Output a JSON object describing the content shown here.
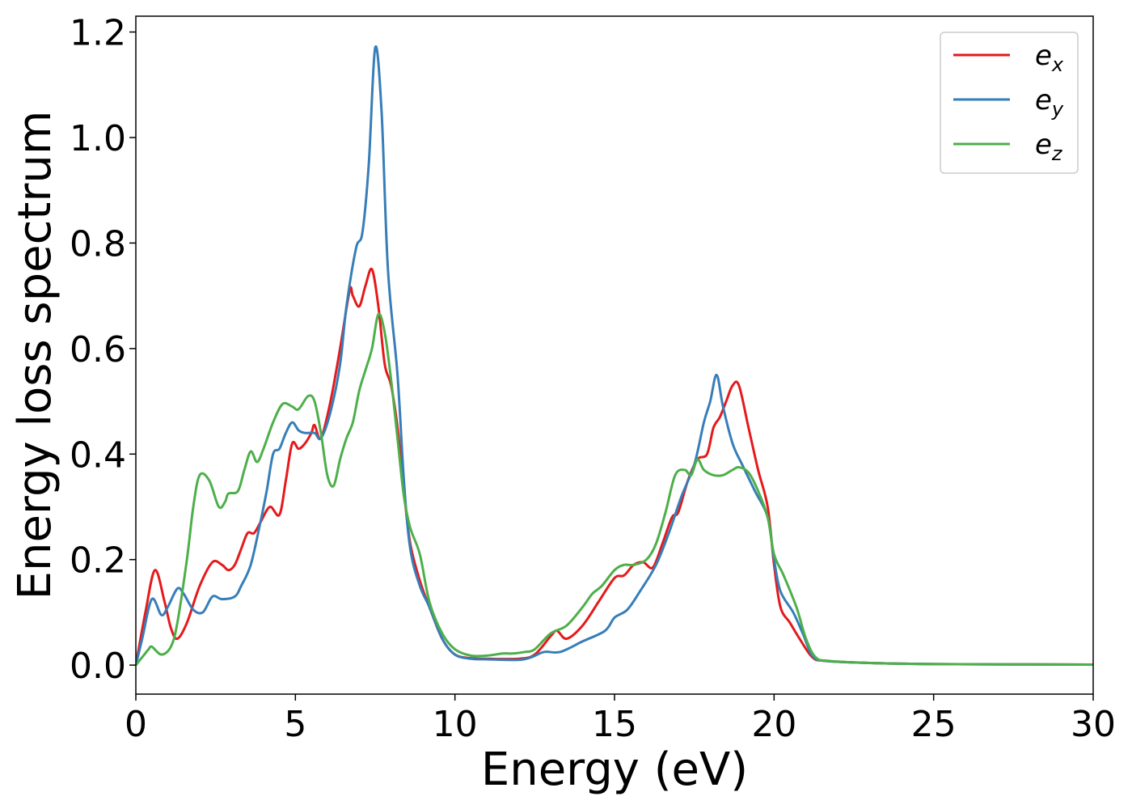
{
  "chart_data": {
    "type": "line",
    "xlabel": "Energy (eV)",
    "ylabel": "Energy loss spectrum",
    "xlim": [
      0,
      30
    ],
    "ylim": [
      -0.055,
      1.23
    ],
    "x_ticks": [
      0,
      5,
      10,
      15,
      20,
      25,
      30
    ],
    "y_ticks": [
      0.0,
      0.2,
      0.4,
      0.6,
      0.8,
      1.0,
      1.2
    ],
    "x_tick_labels": [
      "0",
      "5",
      "10",
      "15",
      "20",
      "25",
      "30"
    ],
    "y_tick_labels": [
      "0.0",
      "0.2",
      "0.4",
      "0.6",
      "0.8",
      "1.0",
      "1.2"
    ],
    "grid": false,
    "legend_position": "top-right",
    "series": [
      {
        "name": "e_x",
        "legend_base": "e",
        "legend_sub": "x",
        "color": "#e41a1c",
        "points": [
          [
            0,
            0
          ],
          [
            0.3,
            0.1
          ],
          [
            0.6,
            0.18
          ],
          [
            0.9,
            0.12
          ],
          [
            1.1,
            0.07
          ],
          [
            1.3,
            0.05
          ],
          [
            1.6,
            0.08
          ],
          [
            2.0,
            0.15
          ],
          [
            2.4,
            0.195
          ],
          [
            2.7,
            0.19
          ],
          [
            2.9,
            0.18
          ],
          [
            3.1,
            0.19
          ],
          [
            3.3,
            0.22
          ],
          [
            3.5,
            0.25
          ],
          [
            3.7,
            0.25
          ],
          [
            3.9,
            0.27
          ],
          [
            4.2,
            0.3
          ],
          [
            4.5,
            0.285
          ],
          [
            4.7,
            0.35
          ],
          [
            4.9,
            0.42
          ],
          [
            5.1,
            0.41
          ],
          [
            5.3,
            0.42
          ],
          [
            5.5,
            0.44
          ],
          [
            5.6,
            0.455
          ],
          [
            5.8,
            0.43
          ],
          [
            6.1,
            0.5
          ],
          [
            6.4,
            0.6
          ],
          [
            6.7,
            0.71
          ],
          [
            6.8,
            0.7
          ],
          [
            7.0,
            0.68
          ],
          [
            7.2,
            0.72
          ],
          [
            7.4,
            0.75
          ],
          [
            7.6,
            0.68
          ],
          [
            7.8,
            0.57
          ],
          [
            8.0,
            0.53
          ],
          [
            8.2,
            0.45
          ],
          [
            8.4,
            0.33
          ],
          [
            8.6,
            0.23
          ],
          [
            8.9,
            0.16
          ],
          [
            9.2,
            0.11
          ],
          [
            9.6,
            0.05
          ],
          [
            10.0,
            0.02
          ],
          [
            10.5,
            0.013
          ],
          [
            11.0,
            0.012
          ],
          [
            12.0,
            0.012
          ],
          [
            12.5,
            0.02
          ],
          [
            13.0,
            0.055
          ],
          [
            13.2,
            0.065
          ],
          [
            13.5,
            0.05
          ],
          [
            14.0,
            0.075
          ],
          [
            14.5,
            0.12
          ],
          [
            15.0,
            0.165
          ],
          [
            15.3,
            0.17
          ],
          [
            15.6,
            0.19
          ],
          [
            15.9,
            0.195
          ],
          [
            16.2,
            0.185
          ],
          [
            16.5,
            0.23
          ],
          [
            16.8,
            0.28
          ],
          [
            17.0,
            0.29
          ],
          [
            17.3,
            0.35
          ],
          [
            17.6,
            0.39
          ],
          [
            17.9,
            0.4
          ],
          [
            18.1,
            0.45
          ],
          [
            18.3,
            0.47
          ],
          [
            18.5,
            0.5
          ],
          [
            18.7,
            0.53
          ],
          [
            18.9,
            0.53
          ],
          [
            19.2,
            0.45
          ],
          [
            19.5,
            0.37
          ],
          [
            19.8,
            0.3
          ],
          [
            20.0,
            0.19
          ],
          [
            20.2,
            0.11
          ],
          [
            20.5,
            0.08
          ],
          [
            20.8,
            0.05
          ],
          [
            21.2,
            0.015
          ],
          [
            21.6,
            0.008
          ],
          [
            23,
            0.004
          ],
          [
            25,
            0.002
          ],
          [
            30,
            0.001
          ]
        ]
      },
      {
        "name": "e_y",
        "legend_base": "e",
        "legend_sub": "y",
        "color": "#377eb8",
        "points": [
          [
            0,
            0
          ],
          [
            0.2,
            0.05
          ],
          [
            0.5,
            0.125
          ],
          [
            0.8,
            0.095
          ],
          [
            1.0,
            0.11
          ],
          [
            1.3,
            0.145
          ],
          [
            1.5,
            0.135
          ],
          [
            1.8,
            0.105
          ],
          [
            2.1,
            0.1
          ],
          [
            2.4,
            0.13
          ],
          [
            2.7,
            0.125
          ],
          [
            3.1,
            0.13
          ],
          [
            3.3,
            0.15
          ],
          [
            3.6,
            0.19
          ],
          [
            3.9,
            0.27
          ],
          [
            4.1,
            0.33
          ],
          [
            4.3,
            0.4
          ],
          [
            4.5,
            0.41
          ],
          [
            4.7,
            0.44
          ],
          [
            4.9,
            0.46
          ],
          [
            5.1,
            0.445
          ],
          [
            5.3,
            0.44
          ],
          [
            5.6,
            0.44
          ],
          [
            5.8,
            0.43
          ],
          [
            6.1,
            0.48
          ],
          [
            6.4,
            0.57
          ],
          [
            6.6,
            0.68
          ],
          [
            6.9,
            0.79
          ],
          [
            7.1,
            0.82
          ],
          [
            7.3,
            0.95
          ],
          [
            7.5,
            1.17
          ],
          [
            7.7,
            1.05
          ],
          [
            7.9,
            0.75
          ],
          [
            8.2,
            0.55
          ],
          [
            8.4,
            0.35
          ],
          [
            8.6,
            0.22
          ],
          [
            8.9,
            0.15
          ],
          [
            9.2,
            0.11
          ],
          [
            9.6,
            0.05
          ],
          [
            10.0,
            0.02
          ],
          [
            10.5,
            0.012
          ],
          [
            11.0,
            0.011
          ],
          [
            12.0,
            0.01
          ],
          [
            12.4,
            0.015
          ],
          [
            12.8,
            0.025
          ],
          [
            13.3,
            0.025
          ],
          [
            14.0,
            0.045
          ],
          [
            14.7,
            0.065
          ],
          [
            15.0,
            0.09
          ],
          [
            15.4,
            0.105
          ],
          [
            15.8,
            0.14
          ],
          [
            16.3,
            0.19
          ],
          [
            16.7,
            0.25
          ],
          [
            17.1,
            0.32
          ],
          [
            17.5,
            0.38
          ],
          [
            17.8,
            0.46
          ],
          [
            18.0,
            0.5
          ],
          [
            18.2,
            0.55
          ],
          [
            18.4,
            0.49
          ],
          [
            18.7,
            0.42
          ],
          [
            19.0,
            0.38
          ],
          [
            19.4,
            0.33
          ],
          [
            19.8,
            0.28
          ],
          [
            20.0,
            0.2
          ],
          [
            20.2,
            0.14
          ],
          [
            20.6,
            0.1
          ],
          [
            20.9,
            0.06
          ],
          [
            21.2,
            0.018
          ],
          [
            21.6,
            0.008
          ],
          [
            23,
            0.004
          ],
          [
            25,
            0.002
          ],
          [
            30,
            0.001
          ]
        ]
      },
      {
        "name": "e_z",
        "legend_base": "e",
        "legend_sub": "z",
        "color": "#4daf4a",
        "points": [
          [
            0,
            0
          ],
          [
            0.2,
            0.015
          ],
          [
            0.4,
            0.03
          ],
          [
            0.5,
            0.035
          ],
          [
            0.8,
            0.02
          ],
          [
            1.1,
            0.035
          ],
          [
            1.3,
            0.08
          ],
          [
            1.6,
            0.2
          ],
          [
            1.8,
            0.3
          ],
          [
            2.0,
            0.36
          ],
          [
            2.3,
            0.35
          ],
          [
            2.6,
            0.3
          ],
          [
            2.8,
            0.31
          ],
          [
            2.9,
            0.325
          ],
          [
            3.2,
            0.33
          ],
          [
            3.4,
            0.37
          ],
          [
            3.6,
            0.405
          ],
          [
            3.8,
            0.385
          ],
          [
            4.0,
            0.41
          ],
          [
            4.3,
            0.46
          ],
          [
            4.6,
            0.495
          ],
          [
            4.9,
            0.49
          ],
          [
            5.1,
            0.485
          ],
          [
            5.4,
            0.51
          ],
          [
            5.6,
            0.5
          ],
          [
            5.8,
            0.44
          ],
          [
            6.0,
            0.36
          ],
          [
            6.2,
            0.34
          ],
          [
            6.4,
            0.39
          ],
          [
            6.6,
            0.43
          ],
          [
            6.8,
            0.46
          ],
          [
            7.0,
            0.52
          ],
          [
            7.2,
            0.56
          ],
          [
            7.4,
            0.6
          ],
          [
            7.6,
            0.665
          ],
          [
            7.8,
            0.63
          ],
          [
            8.0,
            0.54
          ],
          [
            8.2,
            0.43
          ],
          [
            8.4,
            0.32
          ],
          [
            8.6,
            0.26
          ],
          [
            8.9,
            0.21
          ],
          [
            9.2,
            0.12
          ],
          [
            9.6,
            0.06
          ],
          [
            10.0,
            0.03
          ],
          [
            10.5,
            0.018
          ],
          [
            11.0,
            0.018
          ],
          [
            11.5,
            0.022
          ],
          [
            11.8,
            0.022
          ],
          [
            12.2,
            0.025
          ],
          [
            12.5,
            0.03
          ],
          [
            13.0,
            0.06
          ],
          [
            13.5,
            0.075
          ],
          [
            14.0,
            0.11
          ],
          [
            14.3,
            0.135
          ],
          [
            14.6,
            0.15
          ],
          [
            15.0,
            0.18
          ],
          [
            15.3,
            0.19
          ],
          [
            15.6,
            0.19
          ],
          [
            16.0,
            0.2
          ],
          [
            16.3,
            0.23
          ],
          [
            16.6,
            0.29
          ],
          [
            16.9,
            0.36
          ],
          [
            17.2,
            0.37
          ],
          [
            17.4,
            0.36
          ],
          [
            17.6,
            0.39
          ],
          [
            17.8,
            0.37
          ],
          [
            18.1,
            0.36
          ],
          [
            18.4,
            0.36
          ],
          [
            18.7,
            0.37
          ],
          [
            18.9,
            0.375
          ],
          [
            19.2,
            0.365
          ],
          [
            19.5,
            0.33
          ],
          [
            19.8,
            0.28
          ],
          [
            20.0,
            0.21
          ],
          [
            20.3,
            0.17
          ],
          [
            20.7,
            0.11
          ],
          [
            21.0,
            0.05
          ],
          [
            21.3,
            0.015
          ],
          [
            21.7,
            0.008
          ],
          [
            23,
            0.004
          ],
          [
            25,
            0.002
          ],
          [
            30,
            0.001
          ]
        ]
      }
    ]
  }
}
